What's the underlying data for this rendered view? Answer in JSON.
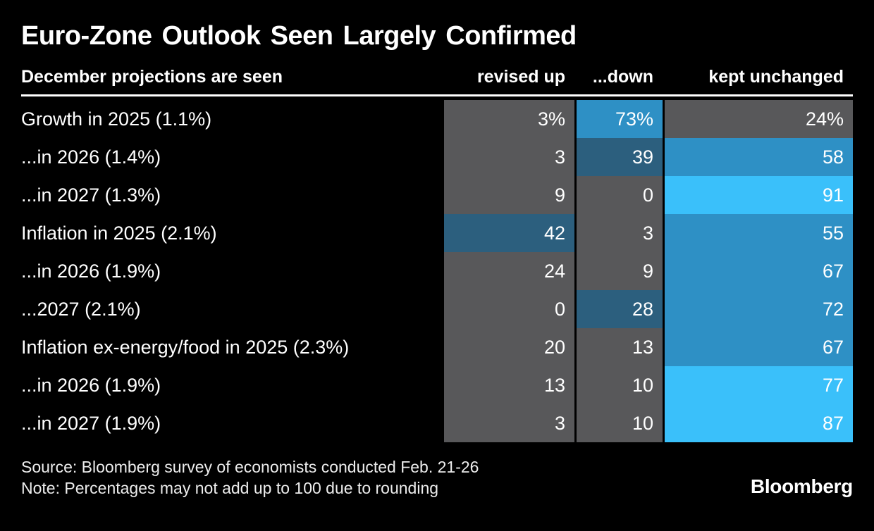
{
  "title": "Euro-Zone Outlook Seen Largely Confirmed",
  "table": {
    "header": {
      "label": "December projections are seen",
      "cols": [
        "revised up",
        "...down",
        "kept unchanged"
      ]
    },
    "rows": [
      {
        "label": "Growth in 2025 (1.1%)",
        "display": [
          "3%",
          "73%",
          "24%"
        ],
        "colors": [
          "gray",
          "blue",
          "gray"
        ]
      },
      {
        "label": "...in 2026 (1.4%)",
        "display": [
          "3",
          "39",
          "58"
        ],
        "colors": [
          "gray",
          "teal",
          "blue"
        ]
      },
      {
        "label": "...in 2027 (1.3%)",
        "display": [
          "9",
          "0",
          "91"
        ],
        "colors": [
          "gray",
          "gray",
          "cyan"
        ]
      },
      {
        "label": "Inflation in 2025 (2.1%)",
        "display": [
          "42",
          "3",
          "55"
        ],
        "colors": [
          "teal",
          "gray",
          "blue"
        ]
      },
      {
        "label": "...in 2026 (1.9%)",
        "display": [
          "24",
          "9",
          "67"
        ],
        "colors": [
          "gray",
          "gray",
          "blue"
        ]
      },
      {
        "label": "...2027 (2.1%)",
        "display": [
          "0",
          "28",
          "72"
        ],
        "colors": [
          "gray",
          "teal",
          "blue"
        ]
      },
      {
        "label": "Inflation ex-energy/food in 2025 (2.3%)",
        "display": [
          "20",
          "13",
          "67"
        ],
        "colors": [
          "gray",
          "gray",
          "blue"
        ]
      },
      {
        "label": "...in 2026 (1.9%)",
        "display": [
          "13",
          "10",
          "77"
        ],
        "colors": [
          "gray",
          "gray",
          "cyan"
        ]
      },
      {
        "label": "...in 2027 (1.9%)",
        "display": [
          "3",
          "10",
          "87"
        ],
        "colors": [
          "gray",
          "gray",
          "cyan"
        ]
      }
    ]
  },
  "footer": {
    "source": "Source: Bloomberg survey of economists conducted Feb. 21-26",
    "note": "Note: Percentages may not add up to 100 due to rounding",
    "logo": "Bloomberg"
  },
  "colors": {
    "background": "#000000",
    "text": "#ffffff",
    "gray": "#58585a",
    "teal": "#2c5f7e",
    "blue": "#2e90c5",
    "cyan": "#3ac0fa"
  },
  "chart_data": {
    "type": "heatmap",
    "title": "Euro-Zone Outlook Seen Largely Confirmed",
    "row_header": "December projections are seen",
    "columns": [
      "revised up",
      "...down",
      "kept unchanged"
    ],
    "rows": [
      "Growth in 2025 (1.1%)",
      "...in 2026 (1.4%)",
      "...in 2027 (1.3%)",
      "Inflation in 2025 (2.1%)",
      "...in 2026 (1.9%)",
      "...2027 (2.1%)",
      "Inflation ex-energy/food in 2025 (2.3%)",
      "...in 2026 (1.9%)",
      "...in 2027 (1.9%)"
    ],
    "values": [
      [
        3,
        73,
        24
      ],
      [
        3,
        39,
        58
      ],
      [
        9,
        0,
        91
      ],
      [
        42,
        3,
        55
      ],
      [
        24,
        9,
        67
      ],
      [
        0,
        28,
        72
      ],
      [
        20,
        13,
        67
      ],
      [
        13,
        10,
        77
      ],
      [
        3,
        10,
        87
      ]
    ],
    "unit": "%",
    "legend_position": "none",
    "color_scale": {
      "gray": "0-24",
      "teal": "28-42",
      "blue": "55-73",
      "cyan": "77-91"
    },
    "source": "Source: Bloomberg survey of economists conducted Feb. 21-26",
    "note": "Note: Percentages may not add up to 100 due to rounding"
  }
}
